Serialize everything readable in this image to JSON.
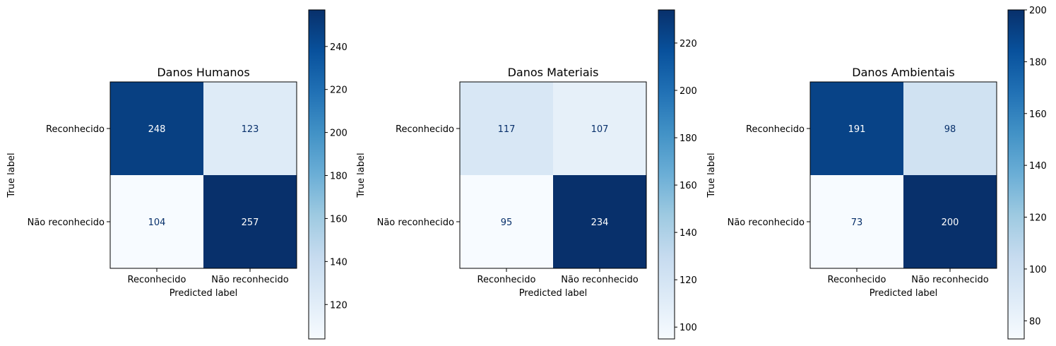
{
  "chart_data": [
    {
      "type": "heatmap",
      "title": "Danos Humanos",
      "xlabel": "Predicted label",
      "ylabel": "True label",
      "x_categories": [
        "Reconhecido",
        "Não reconhecido"
      ],
      "y_categories": [
        "Reconhecido",
        "Não reconhecido"
      ],
      "values": [
        [
          248,
          123
        ],
        [
          104,
          257
        ]
      ],
      "colormap": "Blues",
      "colorbar": {
        "min": 104,
        "max": 257,
        "ticks": [
          120,
          140,
          160,
          180,
          200,
          220,
          240
        ]
      }
    },
    {
      "type": "heatmap",
      "title": "Danos Materiais",
      "xlabel": "Predicted label",
      "ylabel": "True label",
      "x_categories": [
        "Reconhecido",
        "Não reconhecido"
      ],
      "y_categories": [
        "Reconhecido",
        "Não reconhecido"
      ],
      "values": [
        [
          117,
          107
        ],
        [
          95,
          234
        ]
      ],
      "colormap": "Blues",
      "colorbar": {
        "min": 95,
        "max": 234,
        "ticks": [
          100,
          120,
          140,
          160,
          180,
          200,
          220
        ]
      }
    },
    {
      "type": "heatmap",
      "title": "Danos Ambientais",
      "xlabel": "Predicted label",
      "ylabel": "True label",
      "x_categories": [
        "Reconhecido",
        "Não reconhecido"
      ],
      "y_categories": [
        "Reconhecido",
        "Não reconhecido"
      ],
      "values": [
        [
          191,
          98
        ],
        [
          73,
          200
        ]
      ],
      "colormap": "Blues",
      "colorbar": {
        "min": 73,
        "max": 200,
        "ticks": [
          80,
          100,
          120,
          140,
          160,
          180,
          200
        ]
      }
    }
  ]
}
